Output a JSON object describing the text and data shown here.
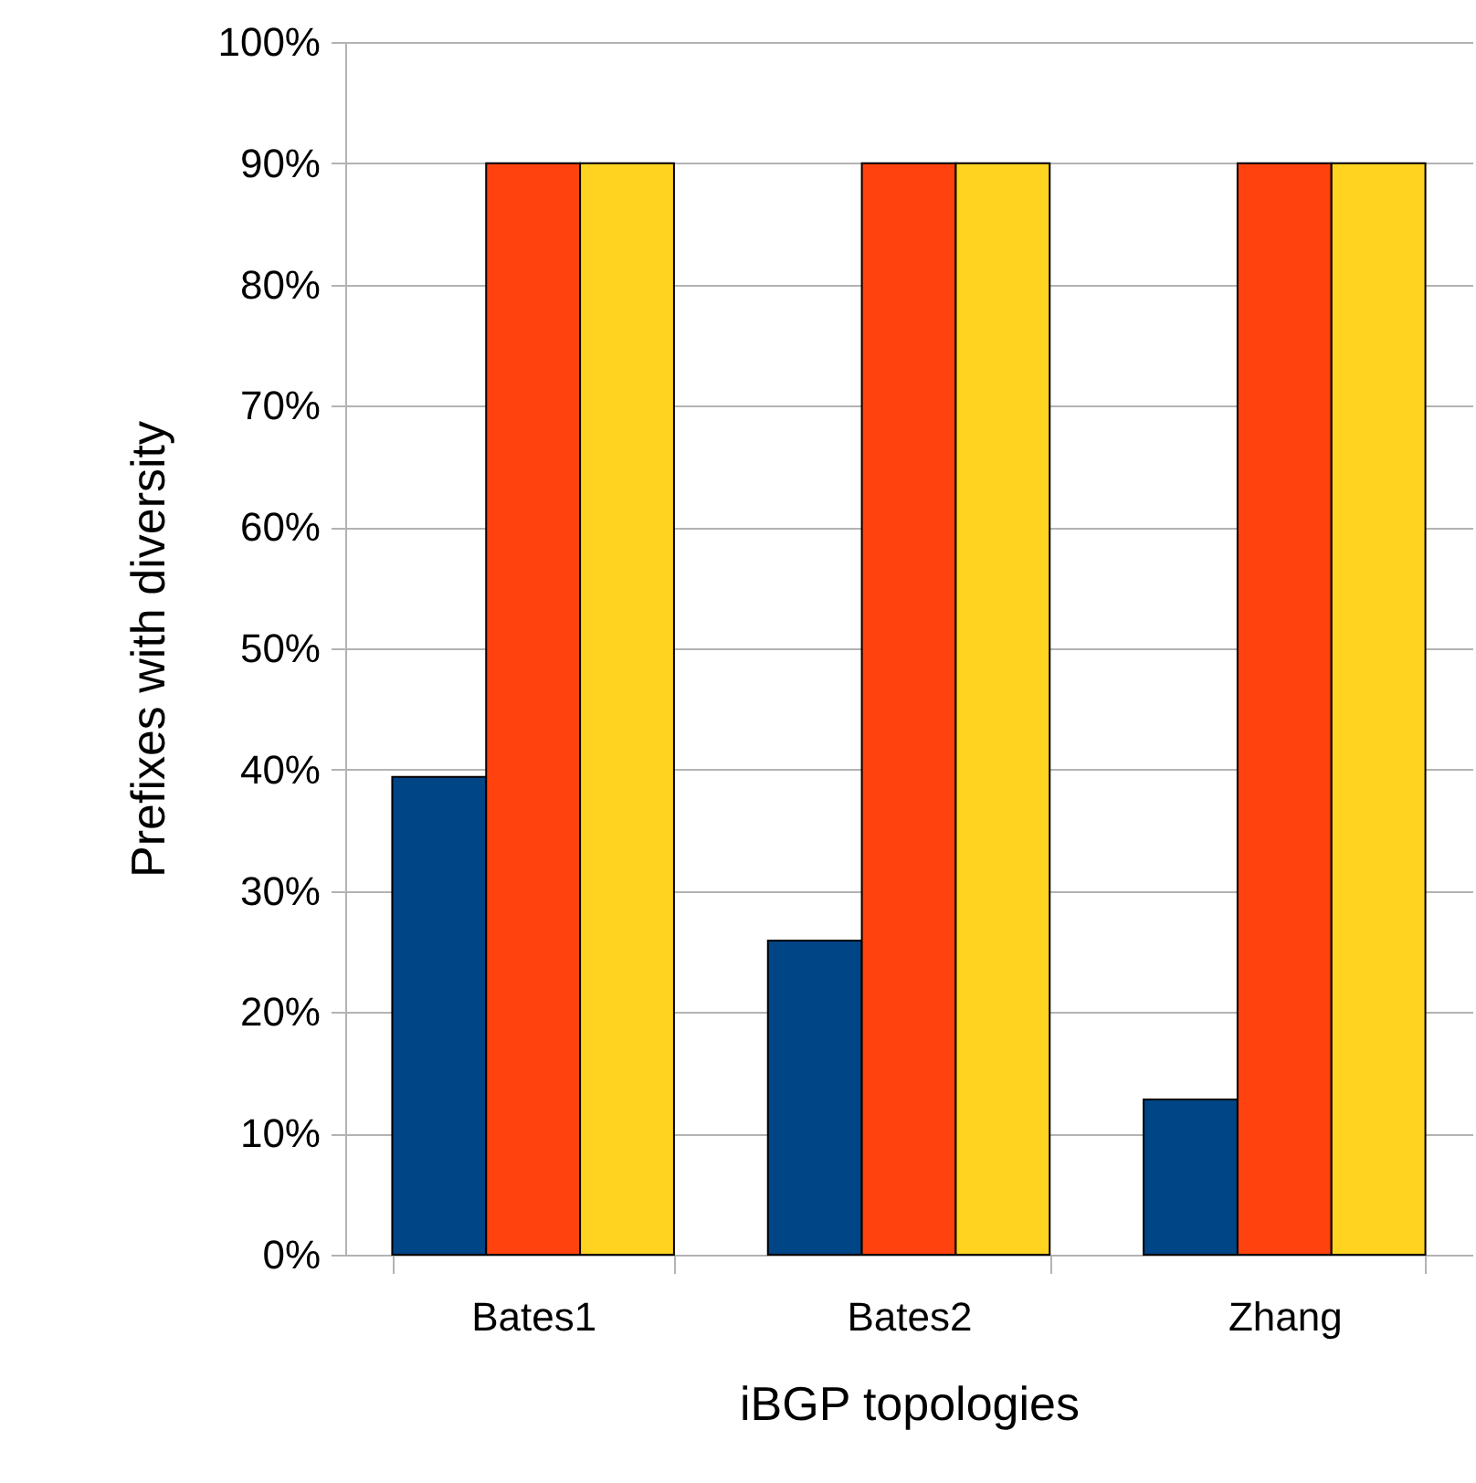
{
  "chart_data": {
    "type": "bar",
    "xlabel": "iBGP topologies",
    "ylabel": "Prefixes with diversity",
    "categories": [
      "Bates1",
      "Bates2",
      "Zhang"
    ],
    "series": [
      {
        "color": "#004586",
        "values": [
          39.4,
          25.9,
          12.8
        ]
      },
      {
        "color": "#ff420e",
        "values": [
          90,
          90,
          90
        ]
      },
      {
        "color": "#ffd320",
        "values": [
          90,
          90,
          90
        ]
      }
    ],
    "ylim": [
      0,
      100
    ],
    "yticks": [
      {
        "value": 0,
        "label": "0%"
      },
      {
        "value": 10,
        "label": "10%"
      },
      {
        "value": 20,
        "label": "20%"
      },
      {
        "value": 30,
        "label": "30%"
      },
      {
        "value": 40,
        "label": "40%"
      },
      {
        "value": 50,
        "label": "50%"
      },
      {
        "value": 60,
        "label": "60%"
      },
      {
        "value": 70,
        "label": "70%"
      },
      {
        "value": 80,
        "label": "80%"
      },
      {
        "value": 90,
        "label": "90%"
      },
      {
        "value": 100,
        "label": "100%"
      }
    ],
    "grid": "y",
    "legend": false
  }
}
